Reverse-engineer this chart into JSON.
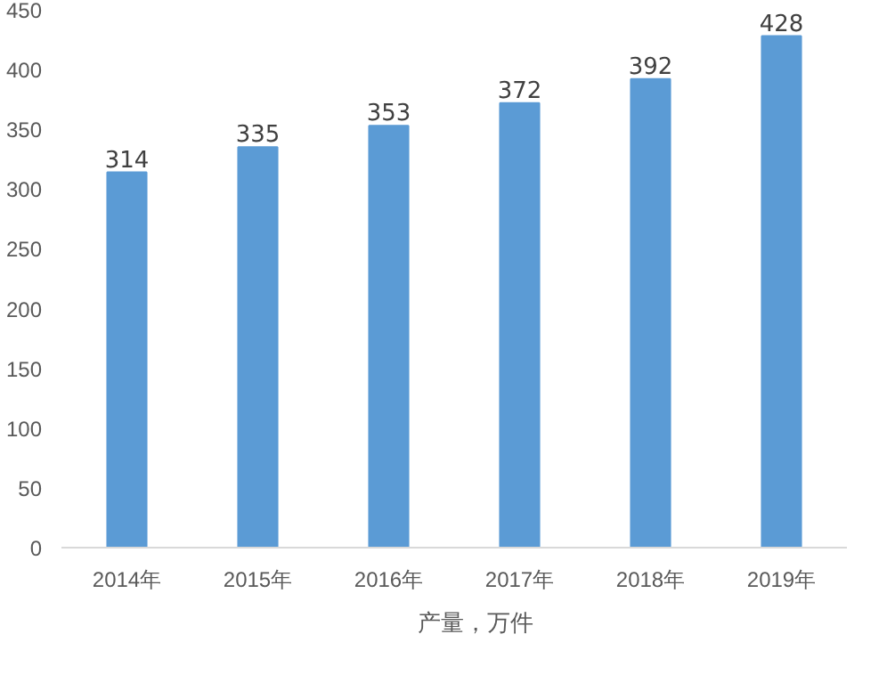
{
  "chart_data": {
    "type": "bar",
    "categories": [
      "2014年",
      "2015年",
      "2016年",
      "2017年",
      "2018年",
      "2019年"
    ],
    "series": [
      {
        "name": "产量，万件",
        "color": "#5b9bd5",
        "values": [
          314,
          335,
          353,
          372,
          392,
          428
        ]
      }
    ],
    "ylim": [
      0,
      450
    ],
    "yticks": [
      0,
      50,
      100,
      150,
      200,
      250,
      300,
      350,
      400,
      450
    ],
    "data_labels": true,
    "legend": "bottom",
    "grid": false
  }
}
